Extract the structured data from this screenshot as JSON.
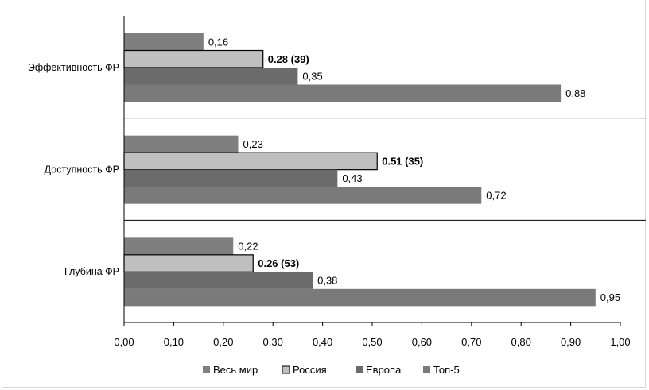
{
  "chart_data": {
    "type": "bar",
    "orientation": "horizontal",
    "title": "",
    "xlabel": "",
    "ylabel": "",
    "xlim": [
      0,
      1
    ],
    "x_ticks": [
      "0,00",
      "0,10",
      "0,20",
      "0,30",
      "0,40",
      "0,50",
      "0,60",
      "0,70",
      "0,80",
      "0,90",
      "1,00"
    ],
    "grid": false,
    "legend_position": "bottom",
    "categories": [
      "Эффективность ФР",
      "Доступность ФР",
      "Глубина ФР"
    ],
    "series": [
      {
        "name": "Весь мир",
        "color": "#7f7f7f",
        "values": [
          0.16,
          0.23,
          0.22
        ],
        "labels": [
          "0,16",
          "0,23",
          "0,22"
        ],
        "bold": false
      },
      {
        "name": "Россия",
        "color": "#bfbfbf",
        "values": [
          0.28,
          0.51,
          0.26
        ],
        "labels": [
          "0.28 (39)",
          "0.51 (35)",
          "0.26 (53)"
        ],
        "bold": true
      },
      {
        "name": "Европа",
        "color": "#6b6b6b",
        "values": [
          0.35,
          0.43,
          0.38
        ],
        "labels": [
          "0,35",
          "0,43",
          "0,38"
        ],
        "bold": false
      },
      {
        "name": "Топ-5",
        "color": "#7a7a7a",
        "values": [
          0.88,
          0.72,
          0.95
        ],
        "labels": [
          "0,88",
          "0,72",
          "0,95"
        ],
        "bold": false
      }
    ]
  }
}
